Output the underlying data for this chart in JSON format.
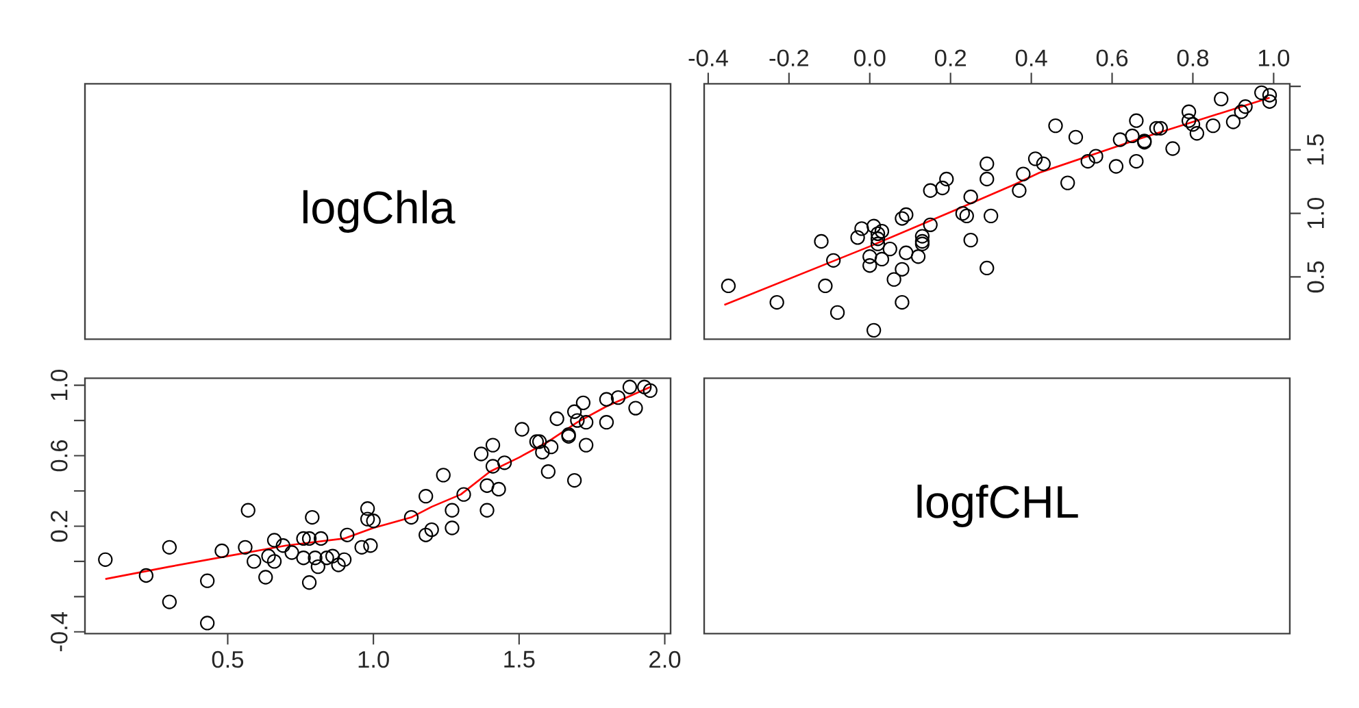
{
  "chart_data": [
    {
      "type": "other",
      "title": "logChla"
    },
    {
      "type": "scatter",
      "xlim": [
        -0.41,
        1.04
      ],
      "ylim": [
        0.01,
        2.02
      ],
      "xticks": [
        -0.4,
        -0.2,
        {
          "value": 0,
          "label": "0.0"
        },
        0.2,
        0.4,
        0.6,
        0.8,
        {
          "value": 1,
          "label": "1.0"
        }
      ],
      "yticks": [
        0.5,
        {
          "value": 1,
          "label": "1.0"
        },
        1.5,
        {
          "value": 2,
          "label": null
        }
      ],
      "series": [
        {
          "type": "scatter",
          "marker": "circle",
          "color": "#000000",
          "x": [
            0.01,
            -0.08,
            0.08,
            -0.23,
            -0.11,
            -0.35,
            0.06,
            0.08,
            0.29,
            0.0,
            -0.09,
            0.03,
            0.0,
            0.12,
            0.09,
            0.05,
            0.13,
            0.02,
            0.13,
            -0.12,
            0.25,
            0.02,
            -0.03,
            0.13,
            0.02,
            0.03,
            -0.02,
            0.01,
            0.15,
            0.08,
            0.09,
            0.3,
            0.24,
            0.23,
            0.25,
            0.37,
            0.15,
            0.18,
            0.49,
            0.29,
            0.19,
            0.38,
            0.61,
            0.29,
            0.43,
            0.66,
            0.54,
            0.41,
            0.56,
            0.75,
            0.68,
            0.68,
            0.62,
            0.65,
            0.51,
            0.81,
            0.71,
            0.72,
            0.46,
            0.85,
            0.8,
            0.9,
            0.79,
            0.66,
            0.79,
            0.92,
            0.93,
            0.99,
            0.87,
            0.99,
            0.97
          ],
          "values": [
            0.08,
            0.22,
            0.3,
            0.3,
            0.43,
            0.43,
            0.48,
            0.56,
            0.57,
            0.59,
            0.63,
            0.64,
            0.66,
            0.66,
            0.69,
            0.72,
            0.76,
            0.76,
            0.78,
            0.78,
            0.79,
            0.8,
            0.81,
            0.82,
            0.84,
            0.86,
            0.88,
            0.9,
            0.91,
            0.96,
            0.99,
            0.98,
            0.98,
            1.0,
            1.13,
            1.18,
            1.18,
            1.2,
            1.24,
            1.27,
            1.27,
            1.31,
            1.37,
            1.39,
            1.39,
            1.41,
            1.41,
            1.43,
            1.45,
            1.51,
            1.56,
            1.57,
            1.58,
            1.61,
            1.6,
            1.63,
            1.67,
            1.67,
            1.69,
            1.69,
            1.7,
            1.72,
            1.73,
            1.73,
            1.8,
            1.8,
            1.84,
            1.88,
            1.9,
            1.93,
            1.95
          ]
        },
        {
          "type": "line",
          "color": "#ff0000",
          "x": [
            -0.36,
            0.0,
            0.2,
            0.36,
            0.42,
            0.67,
            0.99
          ],
          "values": [
            0.28,
            0.74,
            1.01,
            1.23,
            1.32,
            1.59,
            1.91
          ]
        }
      ]
    },
    {
      "type": "scatter",
      "xlim": [
        0.01,
        2.02
      ],
      "ylim": [
        -0.41,
        1.04
      ],
      "xticks": [
        0.5,
        {
          "value": 1,
          "label": "1.0"
        },
        1.5,
        {
          "value": 2,
          "label": "2.0"
        }
      ],
      "yticks": [
        -0.4,
        {
          "value": -0.2,
          "label": null
        },
        {
          "value": 0,
          "label": null
        },
        0.2,
        {
          "value": 0.4,
          "label": null
        },
        0.6,
        {
          "value": 0.8,
          "label": null
        },
        {
          "value": 1,
          "label": "1.0"
        }
      ],
      "series": [
        {
          "type": "scatter",
          "marker": "circle",
          "color": "#000000",
          "x": [
            0.08,
            0.22,
            0.3,
            0.3,
            0.43,
            0.43,
            0.48,
            0.56,
            0.57,
            0.59,
            0.63,
            0.64,
            0.66,
            0.66,
            0.69,
            0.72,
            0.76,
            0.76,
            0.78,
            0.78,
            0.79,
            0.8,
            0.81,
            0.82,
            0.84,
            0.86,
            0.88,
            0.9,
            0.91,
            0.96,
            0.99,
            0.98,
            0.98,
            1.0,
            1.13,
            1.18,
            1.18,
            1.2,
            1.24,
            1.27,
            1.27,
            1.31,
            1.37,
            1.39,
            1.39,
            1.41,
            1.41,
            1.43,
            1.45,
            1.51,
            1.56,
            1.57,
            1.58,
            1.61,
            1.6,
            1.63,
            1.67,
            1.67,
            1.69,
            1.69,
            1.7,
            1.72,
            1.73,
            1.73,
            1.8,
            1.8,
            1.84,
            1.88,
            1.9,
            1.93,
            1.95
          ],
          "values": [
            0.01,
            -0.08,
            0.08,
            -0.23,
            -0.11,
            -0.35,
            0.06,
            0.08,
            0.29,
            0.0,
            -0.09,
            0.03,
            0.0,
            0.12,
            0.09,
            0.05,
            0.13,
            0.02,
            0.13,
            -0.12,
            0.25,
            0.02,
            -0.03,
            0.13,
            0.02,
            0.03,
            -0.02,
            0.01,
            0.15,
            0.08,
            0.09,
            0.3,
            0.24,
            0.23,
            0.25,
            0.37,
            0.15,
            0.18,
            0.49,
            0.29,
            0.19,
            0.38,
            0.61,
            0.29,
            0.43,
            0.66,
            0.54,
            0.41,
            0.56,
            0.75,
            0.68,
            0.68,
            0.62,
            0.65,
            0.51,
            0.81,
            0.71,
            0.72,
            0.46,
            0.85,
            0.8,
            0.9,
            0.79,
            0.66,
            0.79,
            0.92,
            0.93,
            0.99,
            0.87,
            0.99,
            0.97
          ]
        },
        {
          "type": "line",
          "color": "#ff0000",
          "x": [
            0.08,
            0.3,
            0.5,
            0.7,
            0.9,
            1.0,
            1.13,
            1.2,
            1.3,
            1.4,
            1.5,
            1.6,
            1.7,
            1.8,
            1.95
          ],
          "values": [
            -0.1,
            -0.03,
            0.03,
            0.09,
            0.13,
            0.19,
            0.25,
            0.31,
            0.38,
            0.51,
            0.59,
            0.68,
            0.79,
            0.88,
            0.99
          ]
        }
      ]
    },
    {
      "type": "other",
      "title": "logfCHL"
    }
  ]
}
